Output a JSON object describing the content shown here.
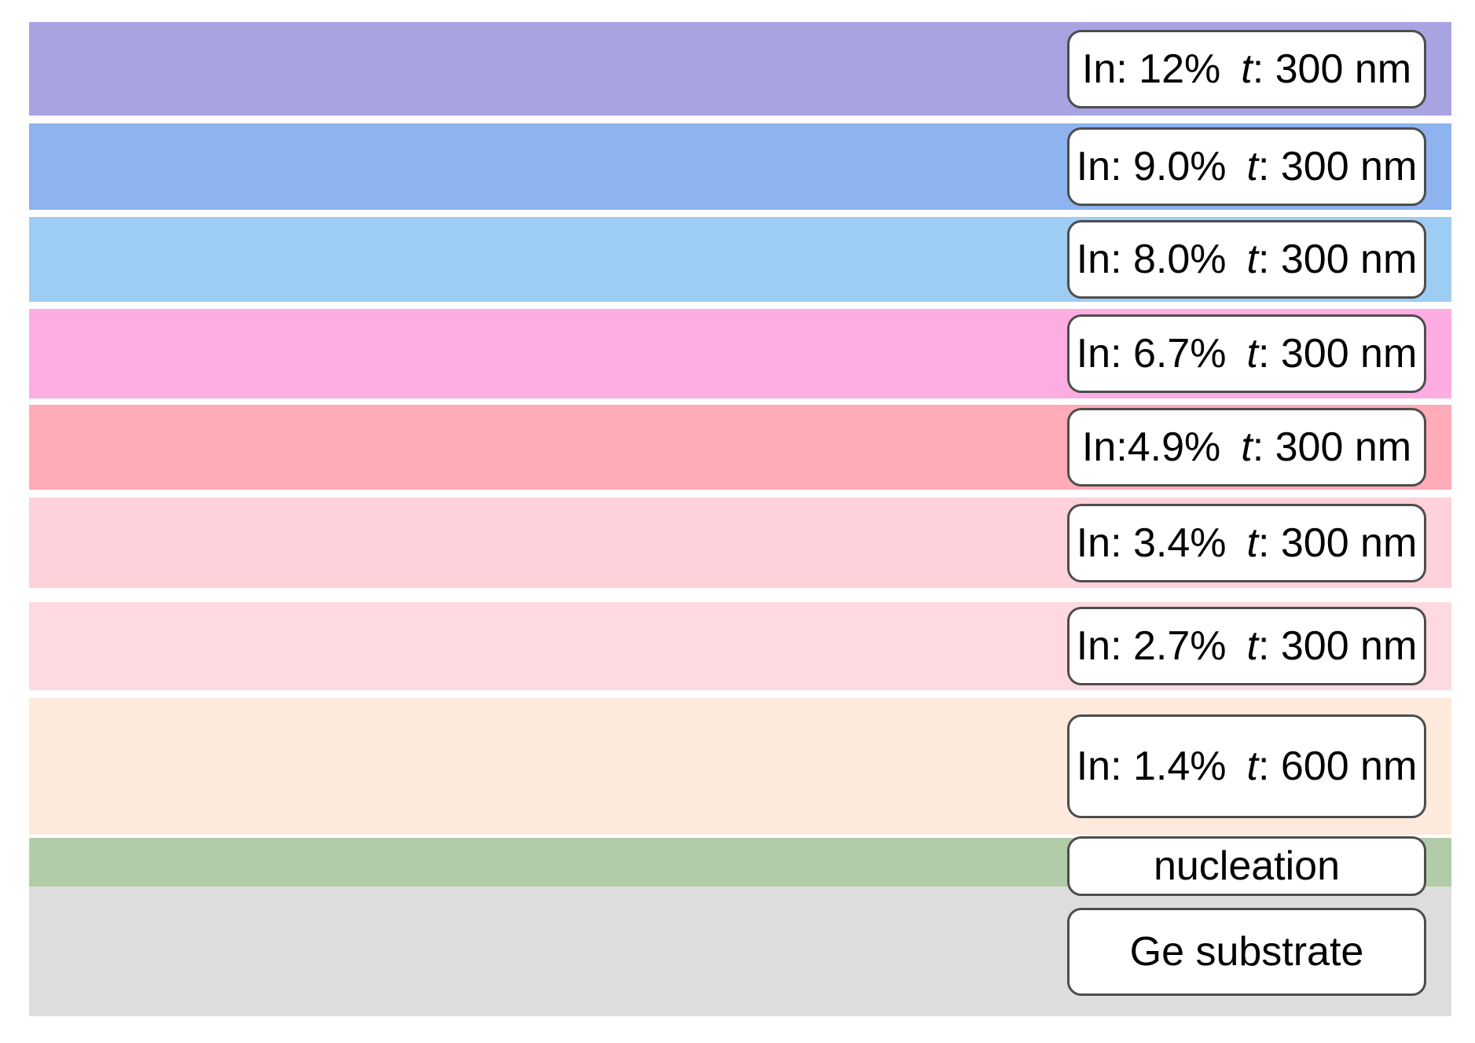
{
  "diagram": {
    "description": "Epitaxial layer stack diagram: graded indium-content layers with thicknesses on a Ge substrate",
    "label_box": {
      "background": "#ffffff",
      "border_color": "#4d4d4d",
      "text_color": "#000000"
    },
    "layers": [
      {
        "id": "in-12",
        "color": "#a9a3e1",
        "label_prefix": "In: 12%",
        "t_label": "t",
        "label_suffix": ": 300 nm"
      },
      {
        "id": "in-9-0",
        "color": "#8eb3ee",
        "label_prefix": "In: 9.0%",
        "t_label": "t",
        "label_suffix": ": 300 nm"
      },
      {
        "id": "in-8-0",
        "color": "#9ecdf3",
        "label_prefix": "In: 8.0%",
        "t_label": "t",
        "label_suffix": ": 300 nm"
      },
      {
        "id": "in-6-7",
        "color": "#feade3",
        "label_prefix": "In: 6.7%",
        "t_label": "t",
        "label_suffix": ": 300 nm"
      },
      {
        "id": "in-4-9",
        "color": "#ffabb8",
        "label_prefix": "In:4.9%",
        "t_label": "t",
        "label_suffix": ": 300 nm"
      },
      {
        "id": "in-3-4",
        "color": "#ffd1da",
        "label_prefix": "In: 3.4%",
        "t_label": "t",
        "label_suffix": ": 300 nm"
      },
      {
        "id": "in-2-7",
        "color": "#ffd9e0",
        "label_prefix": "In: 2.7%",
        "t_label": "t",
        "label_suffix": ": 300 nm"
      },
      {
        "id": "in-1-4",
        "color": "#fdeadd",
        "label_prefix": "In: 1.4%",
        "t_label": "t",
        "label_suffix": ": 600 nm"
      },
      {
        "id": "nucleation",
        "color": "#b2ccaa",
        "label": "nucleation"
      },
      {
        "id": "substrate",
        "color": "#dddddd",
        "label": "Ge substrate"
      }
    ]
  }
}
